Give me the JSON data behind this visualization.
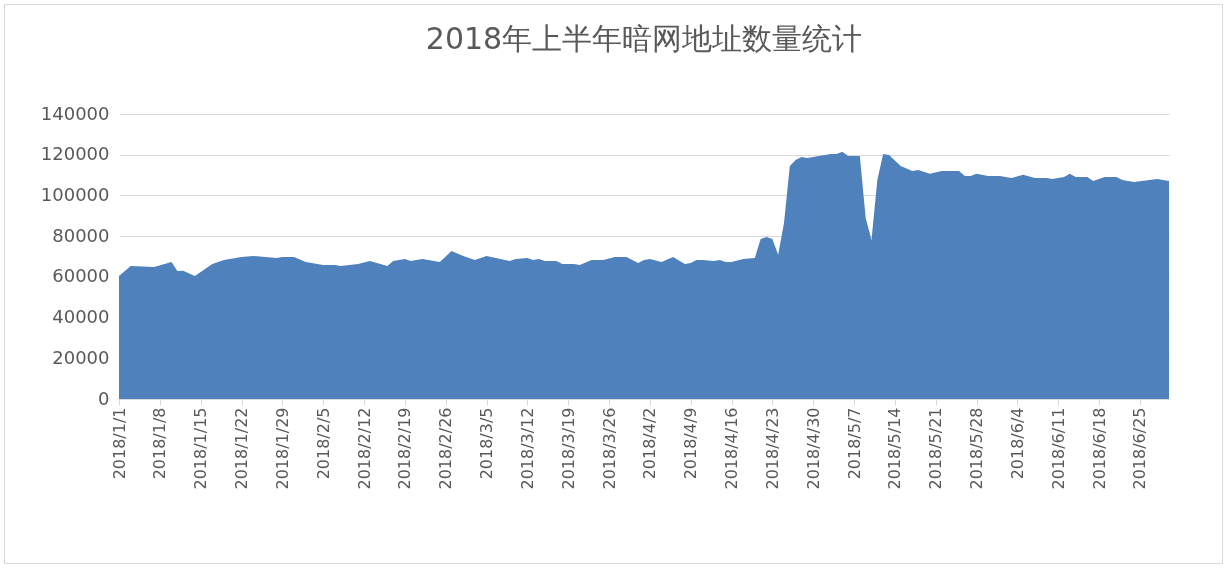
{
  "chart_data": {
    "type": "area",
    "title": "2018年上半年暗网地址数量统计",
    "x": [
      "2018-01-01",
      "2018-01-03",
      "2018-01-07",
      "2018-01-10",
      "2018-01-11",
      "2018-01-12",
      "2018-01-14",
      "2018-01-17",
      "2018-01-19",
      "2018-01-22",
      "2018-01-24",
      "2018-01-28",
      "2018-01-29",
      "2018-01-31",
      "2018-02-02",
      "2018-02-05",
      "2018-02-07",
      "2018-02-08",
      "2018-02-11",
      "2018-02-13",
      "2018-02-16",
      "2018-02-17",
      "2018-02-19",
      "2018-02-20",
      "2018-02-22",
      "2018-02-25",
      "2018-02-27",
      "2018-03-01",
      "2018-03-03",
      "2018-03-05",
      "2018-03-09",
      "2018-03-10",
      "2018-03-12",
      "2018-03-13",
      "2018-03-14",
      "2018-03-15",
      "2018-03-17",
      "2018-03-18",
      "2018-03-20",
      "2018-03-21",
      "2018-03-23",
      "2018-03-24",
      "2018-03-25",
      "2018-03-27",
      "2018-03-29",
      "2018-03-31",
      "2018-04-01",
      "2018-04-02",
      "2018-04-04",
      "2018-04-06",
      "2018-04-08",
      "2018-04-09",
      "2018-04-10",
      "2018-04-11",
      "2018-04-13",
      "2018-04-14",
      "2018-04-15",
      "2018-04-16",
      "2018-04-18",
      "2018-04-20",
      "2018-04-21",
      "2018-04-22",
      "2018-04-23",
      "2018-04-24",
      "2018-04-25",
      "2018-04-26",
      "2018-04-27",
      "2018-04-28",
      "2018-04-29",
      "2018-05-01",
      "2018-05-03",
      "2018-05-04",
      "2018-05-05",
      "2018-05-06",
      "2018-05-08",
      "2018-05-09",
      "2018-05-10",
      "2018-05-11",
      "2018-05-12",
      "2018-05-13",
      "2018-05-15",
      "2018-05-17",
      "2018-05-18",
      "2018-05-20",
      "2018-05-22",
      "2018-05-25",
      "2018-05-26",
      "2018-05-27",
      "2018-05-28",
      "2018-05-30",
      "2018-06-01",
      "2018-06-03",
      "2018-06-05",
      "2018-06-07",
      "2018-06-09",
      "2018-06-10",
      "2018-06-12",
      "2018-06-13",
      "2018-06-14",
      "2018-06-16",
      "2018-06-17",
      "2018-06-19",
      "2018-06-21",
      "2018-06-22",
      "2018-06-24",
      "2018-06-28",
      "2018-06-29",
      "2018-06-30"
    ],
    "series": [
      {
        "color": "#4f81bd",
        "values": [
          60400,
          65300,
          64900,
          67300,
          62900,
          63000,
          60400,
          66300,
          68300,
          69800,
          70300,
          69300,
          69800,
          69800,
          67300,
          65800,
          65800,
          65300,
          66300,
          67800,
          65300,
          67800,
          68800,
          67800,
          68800,
          67300,
          72700,
          70300,
          68300,
          70300,
          67800,
          68800,
          69300,
          68300,
          68800,
          67800,
          67800,
          66300,
          66300,
          65800,
          68300,
          68300,
          68300,
          69800,
          69800,
          66800,
          68300,
          68800,
          67300,
          69800,
          66300,
          66800,
          68300,
          68300,
          67800,
          68300,
          67300,
          67300,
          68800,
          69300,
          78600,
          79600,
          78600,
          70800,
          86500,
          114500,
          117400,
          118900,
          118400,
          119400,
          120400,
          120400,
          121400,
          119400,
          119400,
          88900,
          78100,
          107600,
          120400,
          119900,
          114500,
          112000,
          112500,
          110600,
          112000,
          112000,
          109600,
          109600,
          110600,
          109600,
          109600,
          108600,
          110100,
          108600,
          108600,
          108100,
          109100,
          110600,
          109100,
          109100,
          107100,
          109100,
          109100,
          107600,
          106600,
          108100,
          107600,
          107100
        ]
      }
    ],
    "xlim": [
      "2018-01-01",
      "2018-06-30"
    ],
    "xticks": [
      {
        "value": "2018-01-01",
        "label": "2018/1/1"
      },
      {
        "value": "2018-01-08",
        "label": "2018/1/8"
      },
      {
        "value": "2018-01-15",
        "label": "2018/1/15"
      },
      {
        "value": "2018-01-22",
        "label": "2018/1/22"
      },
      {
        "value": "2018-01-29",
        "label": "2018/1/29"
      },
      {
        "value": "2018-02-05",
        "label": "2018/2/5"
      },
      {
        "value": "2018-02-12",
        "label": "2018/2/12"
      },
      {
        "value": "2018-02-19",
        "label": "2018/2/19"
      },
      {
        "value": "2018-02-26",
        "label": "2018/2/26"
      },
      {
        "value": "2018-03-05",
        "label": "2018/3/5"
      },
      {
        "value": "2018-03-12",
        "label": "2018/3/12"
      },
      {
        "value": "2018-03-19",
        "label": "2018/3/19"
      },
      {
        "value": "2018-03-26",
        "label": "2018/3/26"
      },
      {
        "value": "2018-04-02",
        "label": "2018/4/2"
      },
      {
        "value": "2018-04-09",
        "label": "2018/4/9"
      },
      {
        "value": "2018-04-16",
        "label": "2018/4/16"
      },
      {
        "value": "2018-04-23",
        "label": "2018/4/23"
      },
      {
        "value": "2018-04-30",
        "label": "2018/4/30"
      },
      {
        "value": "2018-05-07",
        "label": "2018/5/7"
      },
      {
        "value": "2018-05-14",
        "label": "2018/5/14"
      },
      {
        "value": "2018-05-21",
        "label": "2018/5/21"
      },
      {
        "value": "2018-05-28",
        "label": "2018/5/28"
      },
      {
        "value": "2018-06-04",
        "label": "2018/6/4"
      },
      {
        "value": "2018-06-11",
        "label": "2018/6/11"
      },
      {
        "value": "2018-06-18",
        "label": "2018/6/18"
      },
      {
        "value": "2018-06-25",
        "label": "2018/6/25"
      }
    ],
    "ylim": [
      0,
      140000
    ],
    "yticks": [
      0,
      20000,
      40000,
      60000,
      80000,
      100000,
      120000,
      140000
    ],
    "grid": "y"
  }
}
